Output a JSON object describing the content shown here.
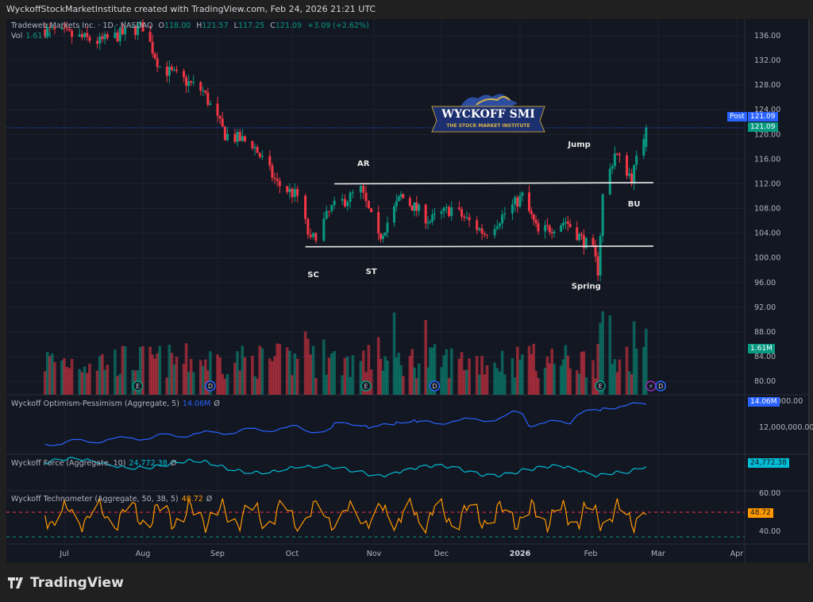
{
  "attribution": "WyckoffStockMarketInstitute created with TradingView.com, Feb 24, 2026 21:21 UTC",
  "symbol": {
    "name": "Tradeweb Markets Inc. · 1D · NASDAQ",
    "open_label": "O",
    "open": "118.00",
    "high_label": "H",
    "high": "121.57",
    "low_label": "L",
    "low": "117.25",
    "close_label": "C",
    "close": "121.09",
    "change": "+3.09 (+2.62%)",
    "vol_label": "Vol",
    "vol": "1.61 M"
  },
  "colors": {
    "up": "#089981",
    "down": "#f23645",
    "bg": "#131722",
    "op": "#2962ff",
    "force": "#00bcd4",
    "techno": "#ff9800"
  },
  "price_axis": {
    "ticks": [
      "136.00",
      "132.00",
      "128.00",
      "124.00",
      "120.00",
      "116.00",
      "112.00",
      "108.00",
      "104.00",
      "100.00",
      "96.00",
      "92.00",
      "88.00",
      "84.00",
      "80.00"
    ],
    "post_label": "Post",
    "post_price": "121.09",
    "last_price": "121.09",
    "volume_label": "1.61M"
  },
  "time_axis": [
    "Jul",
    "Aug",
    "Sep",
    "Oct",
    "Nov",
    "Dec",
    "2026",
    "Feb",
    "Mar",
    "Apr"
  ],
  "annotations": [
    {
      "text": "SC",
      "date": "2025-10-09",
      "price": 96.9
    },
    {
      "text": "ST",
      "date": "2025-10-31",
      "price": 97.4
    },
    {
      "text": "AR",
      "date": "2025-10-28",
      "price": 114.9
    },
    {
      "text": "Jump",
      "date": "2026-01-27",
      "price": 118
    },
    {
      "text": "BU",
      "date": "2026-02-19",
      "price": 108.3
    },
    {
      "text": "Spring",
      "date": "2026-01-30",
      "price": 95
    }
  ],
  "trendlines": [
    {
      "name": "resistance",
      "from": [
        "2025-10-17",
        112.0
      ],
      "to": [
        "2026-02-27",
        112.2
      ]
    },
    {
      "name": "support",
      "from": [
        "2025-10-06",
        101.8
      ],
      "to": [
        "2026-02-27",
        101.9
      ]
    }
  ],
  "chart_data": {
    "type": "candlestick",
    "last_candle": {
      "date": "2026-02-24",
      "open": 118.0,
      "high": 121.57,
      "low": 117.25,
      "close": 121.09,
      "volume": "1.61M"
    },
    "price_path": [
      [
        "2025-06-23",
        137
      ],
      [
        "2025-07-15",
        135
      ],
      [
        "2025-08-01",
        137.5
      ],
      [
        "2025-08-08",
        131
      ],
      [
        "2025-08-26",
        127
      ],
      [
        "2025-09-04",
        120
      ],
      [
        "2025-09-15",
        118.5
      ],
      [
        "2025-09-25",
        112
      ],
      [
        "2025-10-03",
        110
      ],
      [
        "2025-10-08",
        102.5
      ],
      [
        "2025-10-16",
        108
      ],
      [
        "2025-10-27",
        111
      ],
      [
        "2025-11-03",
        103
      ],
      [
        "2025-11-13",
        110
      ],
      [
        "2025-11-26",
        106
      ],
      [
        "2025-12-05",
        108
      ],
      [
        "2025-12-18",
        104
      ],
      [
        "2026-01-02",
        110
      ],
      [
        "2026-01-09",
        104
      ],
      [
        "2026-01-21",
        106
      ],
      [
        "2026-02-02",
        101
      ],
      [
        "2026-02-04",
        98
      ],
      [
        "2026-02-06",
        110
      ],
      [
        "2026-02-11",
        117
      ],
      [
        "2026-02-18",
        113
      ],
      [
        "2026-02-24",
        121.09
      ]
    ],
    "events": [
      {
        "type": "E",
        "date": "2025-07-30"
      },
      {
        "type": "D",
        "date": "2025-08-29"
      },
      {
        "type": "E",
        "date": "2025-10-29"
      },
      {
        "type": "D",
        "date": "2025-11-28"
      },
      {
        "type": "E",
        "date": "2026-02-05"
      },
      {
        "type": "split",
        "date": "2026-02-26"
      },
      {
        "type": "D",
        "date": "2026-03-02"
      }
    ]
  },
  "indicators": [
    {
      "title": "Wyckoff Optimism-Pessimism (Aggregate, 5)",
      "value": "14.06M",
      "axis_label": "12,000,000.00",
      "axis_top": "000.00",
      "badge": "14.06M",
      "suffix": "Ø"
    },
    {
      "title": "Wyckoff Force (Aggregate, 10)",
      "value": "24,772.38",
      "badge": "24,772.38",
      "suffix": "Ø"
    },
    {
      "title": "Wyckoff Technometer (Aggregate, 50, 38, 5)",
      "value": "48.72",
      "badge": "48.72",
      "suffix": "Ø",
      "ticks": [
        "60.00",
        "40.00"
      ],
      "upper_level": 50,
      "lower_level": 38
    }
  ],
  "logo": {
    "title": "WYCKOFF SMI",
    "subtitle": "THE STOCK MARKET INSTITUTE"
  },
  "footer": {
    "brand": "TradingView"
  }
}
